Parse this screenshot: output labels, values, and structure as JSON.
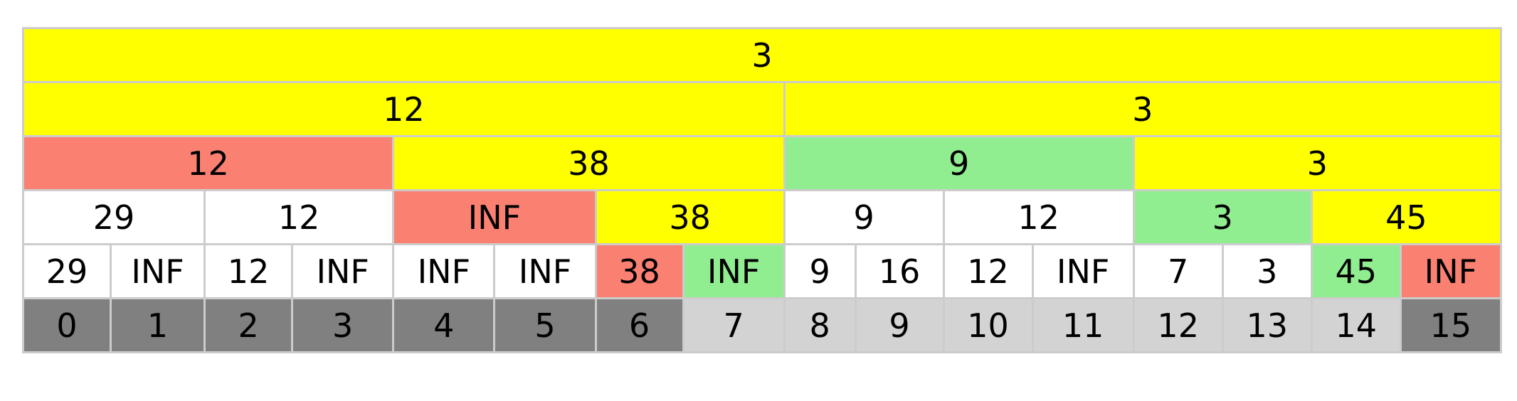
{
  "colors": {
    "yellow": "#ffff00",
    "salmon": "#fa8072",
    "green": "#90ee90",
    "white": "#ffffff",
    "dark": "#808080",
    "light": "#d3d3d3",
    "border": "#cccccc"
  },
  "levels": [
    [
      {
        "value": "3",
        "color": "yellow"
      }
    ],
    [
      {
        "value": "12",
        "color": "yellow"
      },
      {
        "value": "3",
        "color": "yellow"
      }
    ],
    [
      {
        "value": "12",
        "color": "salmon"
      },
      {
        "value": "38",
        "color": "yellow"
      },
      {
        "value": "9",
        "color": "green"
      },
      {
        "value": "3",
        "color": "yellow"
      }
    ],
    [
      {
        "value": "29",
        "color": "white"
      },
      {
        "value": "12",
        "color": "white"
      },
      {
        "value": "INF",
        "color": "salmon"
      },
      {
        "value": "38",
        "color": "yellow"
      },
      {
        "value": "9",
        "color": "white"
      },
      {
        "value": "12",
        "color": "white"
      },
      {
        "value": "3",
        "color": "green"
      },
      {
        "value": "45",
        "color": "yellow"
      }
    ],
    [
      {
        "value": "29",
        "color": "white"
      },
      {
        "value": "INF",
        "color": "white"
      },
      {
        "value": "12",
        "color": "white"
      },
      {
        "value": "INF",
        "color": "white"
      },
      {
        "value": "INF",
        "color": "white"
      },
      {
        "value": "INF",
        "color": "white"
      },
      {
        "value": "38",
        "color": "salmon"
      },
      {
        "value": "INF",
        "color": "green"
      },
      {
        "value": "9",
        "color": "white"
      },
      {
        "value": "16",
        "color": "white"
      },
      {
        "value": "12",
        "color": "white"
      },
      {
        "value": "INF",
        "color": "white"
      },
      {
        "value": "7",
        "color": "white"
      },
      {
        "value": "3",
        "color": "white"
      },
      {
        "value": "45",
        "color": "green"
      },
      {
        "value": "INF",
        "color": "salmon"
      }
    ],
    [
      {
        "value": "0",
        "color": "dark"
      },
      {
        "value": "1",
        "color": "dark"
      },
      {
        "value": "2",
        "color": "dark"
      },
      {
        "value": "3",
        "color": "dark"
      },
      {
        "value": "4",
        "color": "dark"
      },
      {
        "value": "5",
        "color": "dark"
      },
      {
        "value": "6",
        "color": "dark"
      },
      {
        "value": "7",
        "color": "light"
      },
      {
        "value": "8",
        "color": "light"
      },
      {
        "value": "9",
        "color": "light"
      },
      {
        "value": "10",
        "color": "light"
      },
      {
        "value": "11",
        "color": "light"
      },
      {
        "value": "12",
        "color": "light"
      },
      {
        "value": "13",
        "color": "light"
      },
      {
        "value": "14",
        "color": "light"
      },
      {
        "value": "15",
        "color": "dark"
      }
    ]
  ]
}
